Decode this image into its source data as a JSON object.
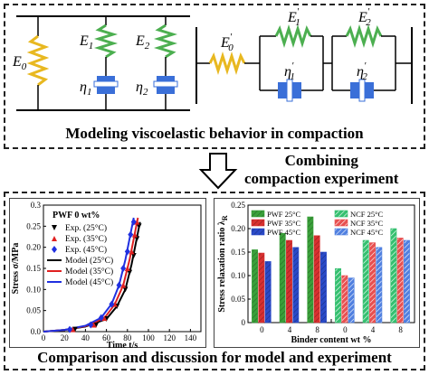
{
  "top_caption": "Modeling viscoelastic behavior in compaction",
  "mid_caption_line1": "Combining",
  "mid_caption_line2": "compaction experiment",
  "bottom_caption": "Comparison and discussion for model and experiment",
  "model_symbols": {
    "E0": "E",
    "E0_sub": "0",
    "E1": "E",
    "E1_sub": "1",
    "E2": "E",
    "E2_sub": "2",
    "eta1": "η",
    "eta1_sub": "1",
    "eta2": "η",
    "eta2_sub": "2",
    "E0p": "E",
    "E0p_sub": "0",
    "E1p": "E",
    "E1p_sub": "1",
    "E2p": "E",
    "E2p_sub": "2",
    "eta1p": "η",
    "eta1p_sub": "1",
    "eta2p": "η",
    "eta2p_sub": "2",
    "prime": "′"
  },
  "colors": {
    "spring_yellow": "#e8b820",
    "spring_green": "#4caf50",
    "dashpot_blue": "#3a6fd8"
  },
  "chart_data": [
    {
      "type": "line",
      "title": "PWF 0 wt%",
      "xlabel": "Time t/s",
      "ylabel": "Stress σ/MPa",
      "xlim": [
        0,
        150
      ],
      "ylim": [
        0.0,
        0.3
      ],
      "xticks": [
        "0",
        "20",
        "40",
        "60",
        "80",
        "100",
        "120",
        "140"
      ],
      "yticks": [
        "0.0",
        "0.05",
        "0.10",
        "0.15",
        "0.20",
        "0.25",
        "0.3"
      ],
      "legend_position": "top-left",
      "series": [
        {
          "name": "Exp. (25°C)",
          "kind": "markers",
          "marker": "triangle-down",
          "color": "#000000",
          "x": [
            30,
            50,
            60,
            70,
            78,
            82,
            86,
            89,
            91
          ],
          "y": [
            0.005,
            0.015,
            0.03,
            0.06,
            0.1,
            0.14,
            0.18,
            0.22,
            0.25
          ]
        },
        {
          "name": "Exp. (35°C)",
          "kind": "markers",
          "marker": "triangle-up",
          "color": "#e02020",
          "x": [
            28,
            48,
            58,
            68,
            76,
            80,
            84,
            87,
            89
          ],
          "y": [
            0.005,
            0.016,
            0.032,
            0.065,
            0.11,
            0.15,
            0.19,
            0.23,
            0.26
          ]
        },
        {
          "name": "Exp. (45°C)",
          "kind": "markers",
          "marker": "diamond",
          "color": "#2030e0",
          "x": [
            25,
            45,
            55,
            65,
            72,
            76,
            80,
            83,
            86
          ],
          "y": [
            0.005,
            0.016,
            0.033,
            0.065,
            0.11,
            0.15,
            0.19,
            0.23,
            0.26
          ]
        },
        {
          "name": "Model (25°C)",
          "kind": "line",
          "color": "#000000",
          "x": [
            0,
            20,
            40,
            60,
            70,
            78,
            84,
            88,
            92
          ],
          "y": [
            0.0,
            0.004,
            0.012,
            0.03,
            0.06,
            0.1,
            0.16,
            0.21,
            0.26
          ]
        },
        {
          "name": "Model (35°C)",
          "kind": "line",
          "color": "#e02020",
          "x": [
            0,
            20,
            40,
            58,
            68,
            76,
            82,
            86,
            90
          ],
          "y": [
            0.0,
            0.004,
            0.013,
            0.032,
            0.065,
            0.11,
            0.17,
            0.22,
            0.27
          ]
        },
        {
          "name": "Model (45°C)",
          "kind": "line",
          "color": "#2030e0",
          "x": [
            0,
            20,
            40,
            55,
            65,
            72,
            78,
            82,
            86
          ],
          "y": [
            0.0,
            0.004,
            0.014,
            0.033,
            0.066,
            0.11,
            0.17,
            0.22,
            0.27
          ]
        }
      ]
    },
    {
      "type": "bar",
      "xlabel": "Binder content wt %",
      "ylabel": "Stress relaxation ratio λ",
      "ylabel_sub": "R",
      "ylim": [
        0,
        0.25
      ],
      "yticks": [
        "0",
        "0.05",
        "0.10",
        "0.15",
        "0.20",
        "0.25"
      ],
      "legend_position": "top",
      "groups": [
        {
          "label": "0",
          "values": [
            0.155,
            0.148,
            0.13
          ]
        },
        {
          "label": "4",
          "values": [
            0.19,
            0.175,
            0.16
          ]
        },
        {
          "label": "8",
          "values": [
            0.225,
            0.185,
            0.15
          ]
        },
        {
          "label": "0",
          "values": [
            0.115,
            0.1,
            0.095
          ]
        },
        {
          "label": "4",
          "values": [
            0.175,
            0.17,
            0.16
          ]
        },
        {
          "label": "8",
          "values": [
            0.2,
            0.18,
            0.175
          ]
        }
      ],
      "series": [
        {
          "name": "PWF 25°C",
          "color": "#3aa03a",
          "pattern": "diag"
        },
        {
          "name": "PWF 35°C",
          "color": "#d83030",
          "pattern": "diag"
        },
        {
          "name": "PWF 45°C",
          "color": "#2a4ac8",
          "pattern": "diag"
        },
        {
          "name": "NCF 25°C",
          "color": "#35c070",
          "pattern": "diag-light"
        },
        {
          "name": "NCF 35°C",
          "color": "#e85050",
          "pattern": "diag-light"
        },
        {
          "name": "NCF 45°C",
          "color": "#5080e0",
          "pattern": "diag-light"
        }
      ]
    }
  ]
}
